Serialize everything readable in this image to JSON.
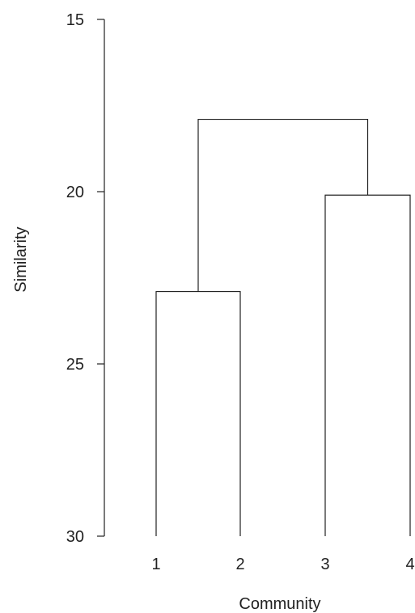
{
  "chart_data": {
    "type": "dendrogram",
    "title": "",
    "xlabel": "Community",
    "ylabel": "Similarity",
    "ylim": [
      15,
      30
    ],
    "y_inverted": true,
    "y_ticks": [
      15,
      20,
      25,
      30
    ],
    "leaves": [
      "1",
      "2",
      "3",
      "4"
    ],
    "merges": [
      {
        "left": "1",
        "right": "2",
        "height": 22.9
      },
      {
        "left": "3",
        "right": "4",
        "height": 20.1
      },
      {
        "left": "1+2",
        "right": "3+4",
        "height": 17.9
      }
    ],
    "leaf_base": 30,
    "line_color": "#222222",
    "grid": false,
    "legend": "none"
  }
}
